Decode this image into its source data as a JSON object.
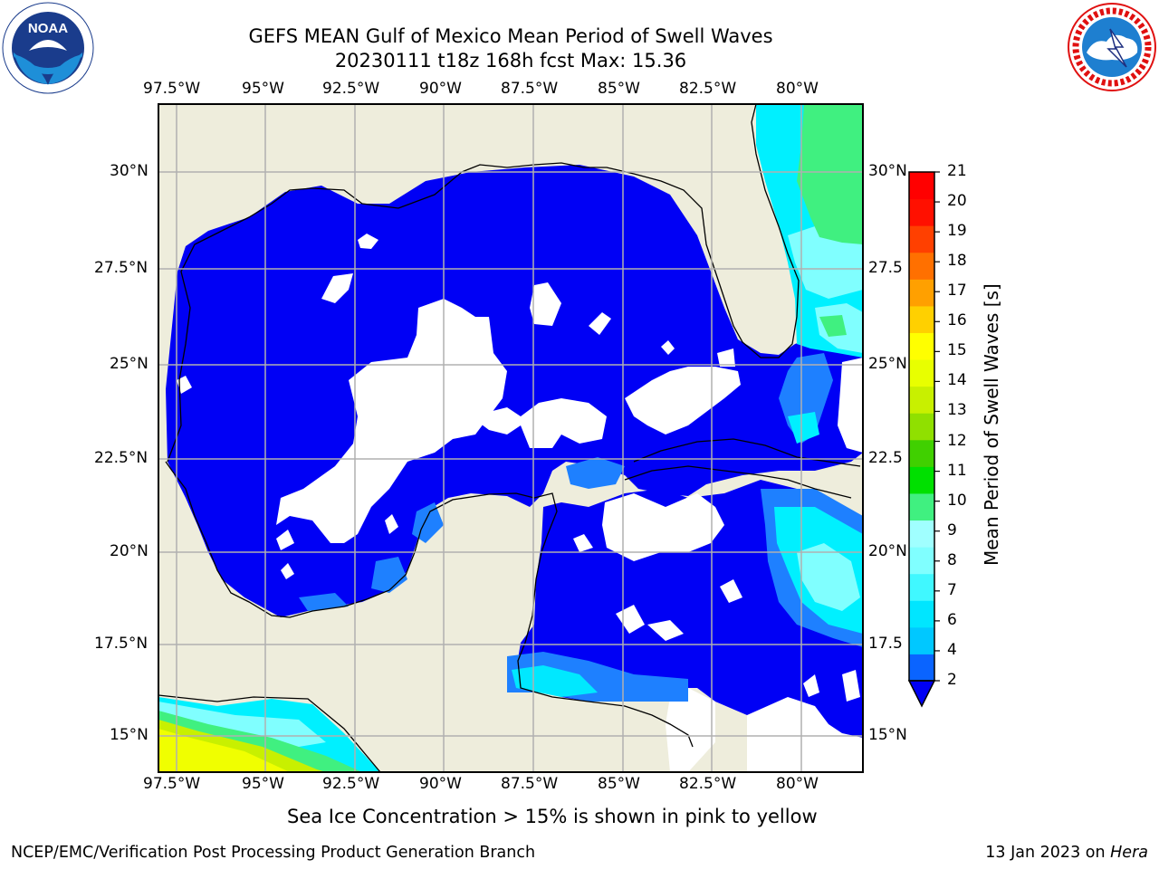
{
  "title": {
    "line1": "GEFS MEAN Gulf of Mexico Mean Period of Swell Waves",
    "line2": "20230111 t18z 168h fcst   Max: 15.36"
  },
  "logos": {
    "noara_left": {
      "icon": "noaa-logo-icon",
      "text": "NOAA"
    },
    "nws_right": {
      "icon": "nws-logo-icon",
      "ring_text": "NATIONAL WEATHER SERVICE"
    }
  },
  "map": {
    "lon_labels": [
      "97.5°W",
      "95°W",
      "92.5°W",
      "90°W",
      "87.5°W",
      "85°W",
      "82.5°W",
      "80°W"
    ],
    "lat_labels": [
      "30°N",
      "27.5°N",
      "25°N",
      "22.5°N",
      "20°N",
      "17.5°N",
      "15°N"
    ],
    "lat_labels_right": [
      "30°N",
      "27.5",
      "25°N",
      "22.5",
      "20°N",
      "17.5",
      "15°N"
    ],
    "colors": {
      "land": "#eeeddc",
      "sea_blue": "#0000f5",
      "light_blue": "#1e80ff",
      "cyan": "#00f0ff",
      "pale_cyan": "#80ffff",
      "green": "#40f080",
      "yellow_green": "#d8ff00",
      "yellow": "#f5ff00",
      "grid": "#b0b0b0"
    }
  },
  "colorbar": {
    "label": "Mean Period of Swell Waves [s]",
    "ticks": [
      "2",
      "4",
      "6",
      "7",
      "8",
      "9",
      "10",
      "11",
      "12",
      "13",
      "14",
      "15",
      "16",
      "17",
      "18",
      "19",
      "20",
      "21"
    ],
    "colors": [
      "#0a64ff",
      "#00c8ff",
      "#00e6ff",
      "#40f8ff",
      "#80ffff",
      "#a0ffff",
      "#40f080",
      "#00e000",
      "#40d000",
      "#90e000",
      "#c8f000",
      "#e8ff00",
      "#ffff00",
      "#ffd000",
      "#ffa000",
      "#ff7000",
      "#ff4000",
      "#ff1000",
      "#ff0000"
    ],
    "extend_color": "#0000f5"
  },
  "note": "Sea Ice Concentration > 15% is shown in pink to yellow",
  "footer": {
    "left": "NCEP/EMC/Verification Post Processing Product Generation Branch",
    "right_prefix": "13 Jan 2023 on ",
    "right_host": "Hera"
  }
}
